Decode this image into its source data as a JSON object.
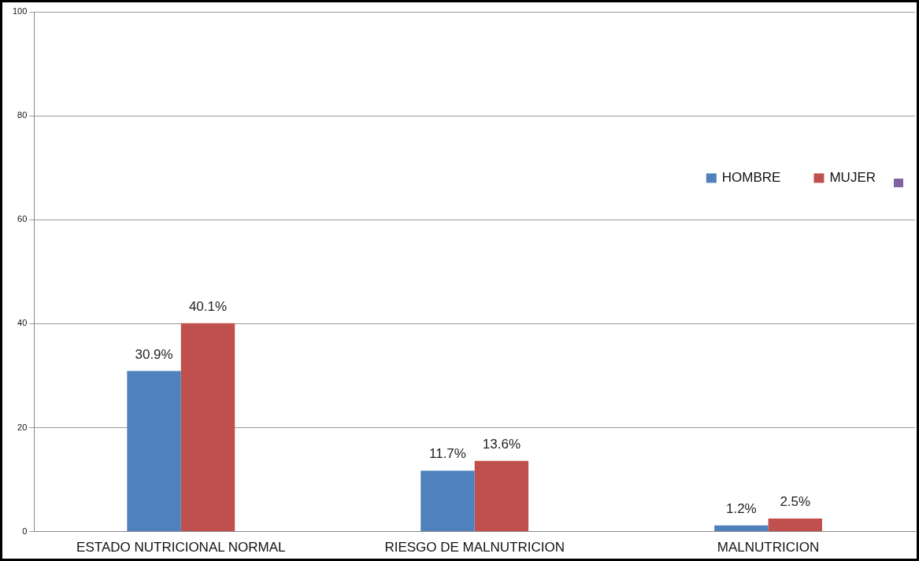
{
  "chart_data": {
    "type": "bar",
    "categories": [
      "ESTADO NUTRICIONAL NORMAL",
      "RIESGO DE MALNUTRICION",
      "MALNUTRICION"
    ],
    "series": [
      {
        "name": "HOMBRE",
        "color": "#4f81bd",
        "values": [
          30.9,
          11.7,
          1.2
        ],
        "value_labels": [
          "30.9%",
          "11.7%",
          "1.2%"
        ]
      },
      {
        "name": "MUJER",
        "color": "#c0504d",
        "values": [
          40.1,
          13.6,
          2.5
        ],
        "value_labels": [
          "40.1%",
          "13.6%",
          "2.5%"
        ]
      }
    ],
    "ylim": [
      0,
      100
    ],
    "yticks": [
      0,
      20,
      40,
      60,
      80,
      100
    ],
    "grid": "y",
    "legend": "right"
  }
}
